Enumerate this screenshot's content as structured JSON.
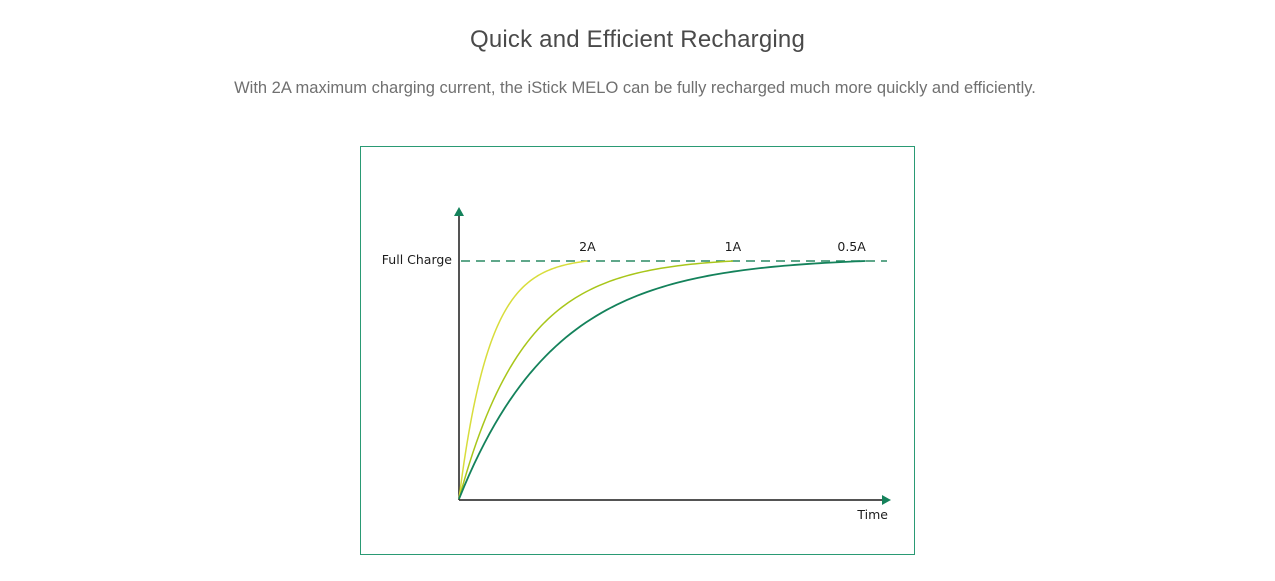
{
  "section": {
    "title": "Quick and Efficient Recharging",
    "description": "With 2A maximum charging current, the iStick MELO can be fully recharged much more quickly and efficiently."
  },
  "chart_data": {
    "type": "line",
    "title": "",
    "xlabel": "Time",
    "ylabel": "",
    "y_reference_label": "Full Charge",
    "series": [
      {
        "name": "2A",
        "color": "#d8dd3c",
        "time_to_full_fraction": 0.3
      },
      {
        "name": "1A",
        "color": "#a8c61a",
        "time_to_full_fraction": 0.64
      },
      {
        "name": "0.5A",
        "color": "#14825b",
        "time_to_full_fraction": 0.95
      }
    ],
    "reference_line": {
      "label": "Full Charge",
      "style": "dashed",
      "color": "#2a8a64"
    },
    "axis_color": "#1c1c1c",
    "arrow_color": "#14825b",
    "frame_color": "#2a9a74",
    "grid": false
  }
}
